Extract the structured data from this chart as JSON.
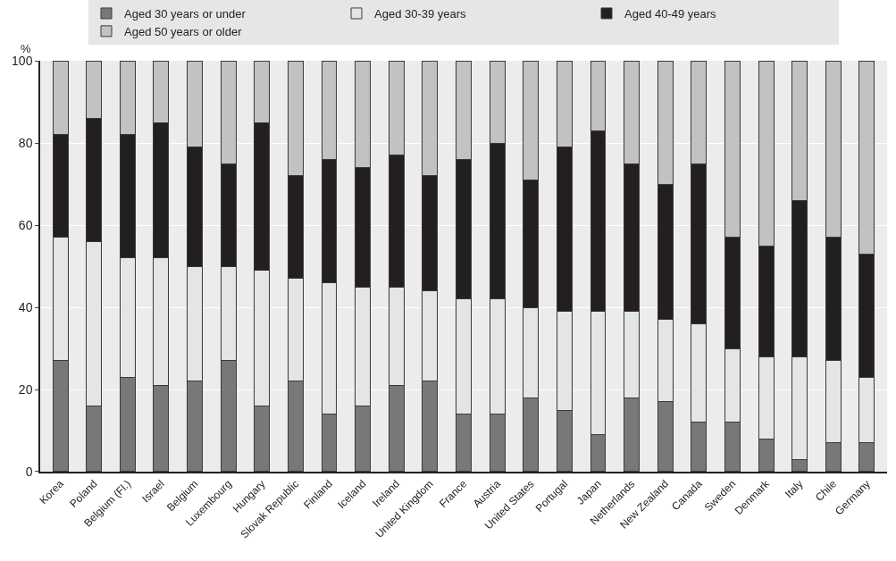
{
  "chart_data": {
    "type": "bar",
    "stacked": true,
    "ylabel": "%",
    "ylim": [
      0,
      100
    ],
    "yticks": [
      0,
      20,
      40,
      60,
      80,
      100
    ],
    "grid": "y",
    "legend": "top",
    "categories": [
      "Korea",
      "Poland",
      "Belgium (Fl.)",
      "Israel",
      "Belgium",
      "Luxembourg",
      "Hungary",
      "Slovak Republic",
      "Finland",
      "Iceland",
      "Ireland",
      "United Kingdom",
      "France",
      "Austria",
      "United States",
      "Portugal",
      "Japan",
      "Netherlands",
      "New Zealand",
      "Canada",
      "Sweden",
      "Denmark",
      "Italy",
      "Chile",
      "Germany"
    ],
    "series": [
      {
        "name": "Aged 30 years or under",
        "color": "#77787a",
        "values": [
          27,
          16,
          23,
          21,
          22,
          27,
          16,
          22,
          14,
          16,
          21,
          22,
          14,
          14,
          18,
          15,
          9,
          18,
          17,
          12,
          12,
          8,
          3,
          7,
          7
        ]
      },
      {
        "name": "Aged 30-39 years",
        "color": "#e4e5e7",
        "values": [
          30,
          40,
          29,
          31,
          28,
          23,
          33,
          25,
          32,
          29,
          24,
          22,
          28,
          28,
          22,
          24,
          30,
          21,
          20,
          24,
          18,
          20,
          25,
          20,
          16
        ]
      },
      {
        "name": "Aged 40-49 years",
        "color": "#231f20",
        "values": [
          25,
          30,
          30,
          33,
          29,
          25,
          36,
          25,
          30,
          29,
          32,
          28,
          34,
          38,
          31,
          40,
          44,
          36,
          33,
          39,
          27,
          27,
          38,
          30,
          30
        ]
      },
      {
        "name": "Aged 50 years or older",
        "color": "#c1c2c4",
        "values": [
          18,
          14,
          18,
          15,
          21,
          25,
          15,
          28,
          24,
          26,
          23,
          28,
          24,
          20,
          29,
          21,
          17,
          25,
          30,
          25,
          43,
          45,
          34,
          43,
          47
        ]
      }
    ]
  }
}
